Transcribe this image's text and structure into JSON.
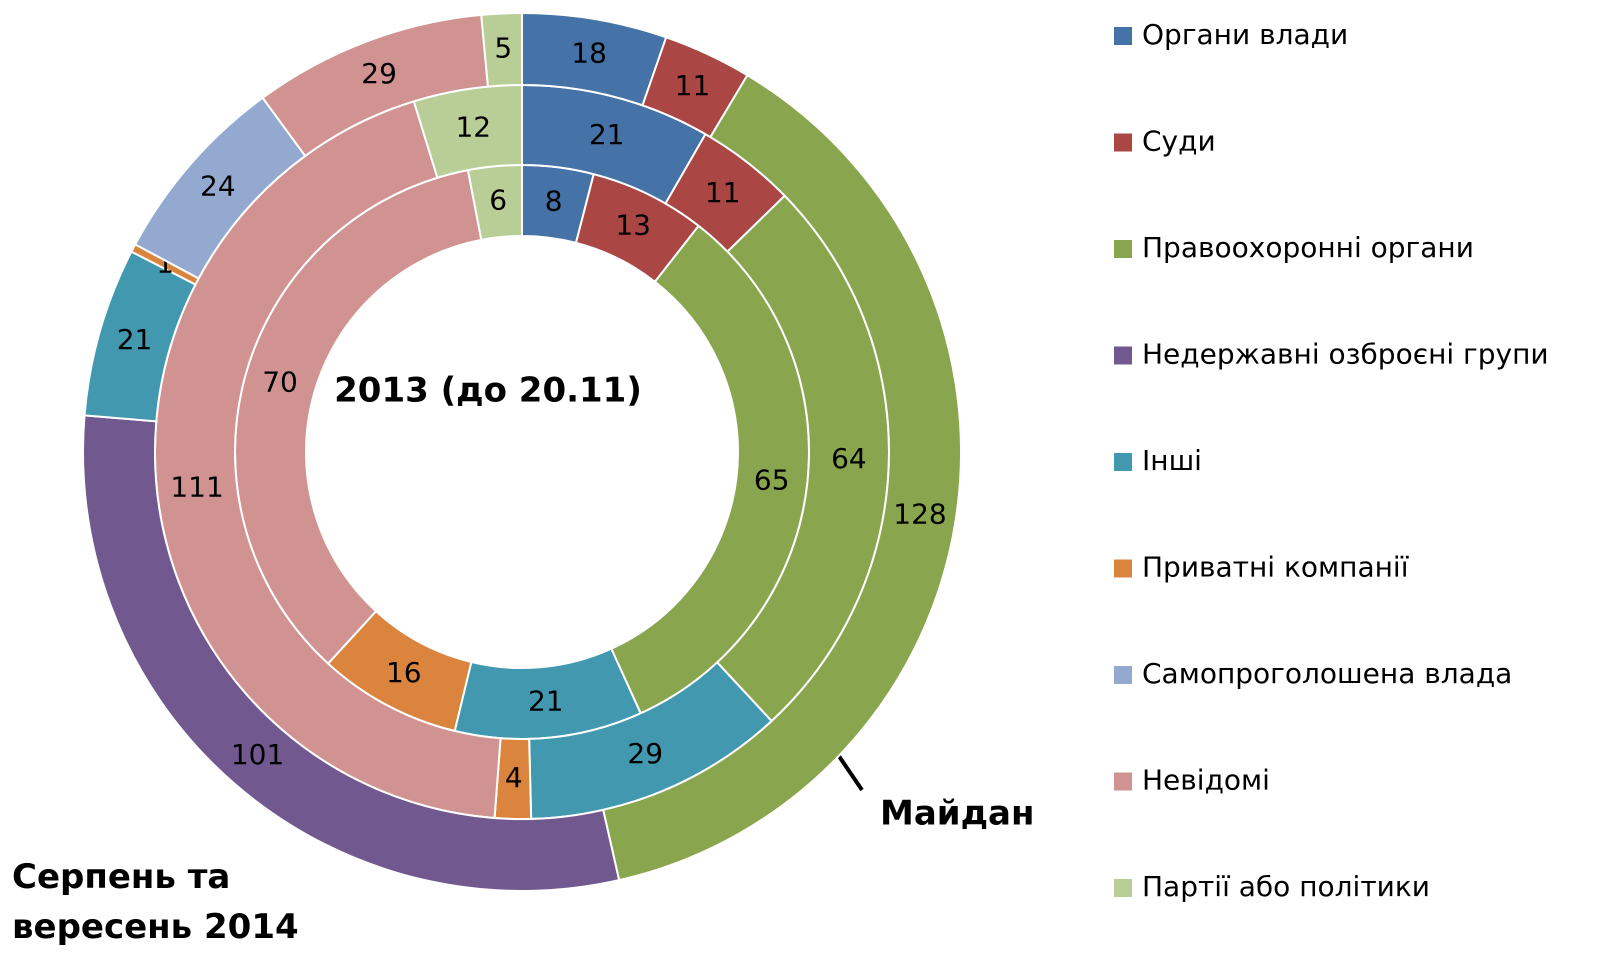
{
  "chart_data": {
    "type": "donut",
    "categories": [
      "Органи влади",
      "Суди",
      "Правоохоронні органи",
      "Недержавні озброєні групи",
      "Інші",
      "Приватні компанії",
      "Самопроголошена влада",
      "Невідомі",
      "Партії або політики"
    ],
    "colors": [
      "#4572a7",
      "#aa4643",
      "#89a54e",
      "#71588f",
      "#4198af",
      "#db843d",
      "#93a9cf",
      "#d19392",
      "#b9cd96"
    ],
    "series": [
      {
        "name": "2013 (до 20.11)",
        "values": [
          8,
          13,
          65,
          null,
          21,
          16,
          null,
          70,
          6
        ]
      },
      {
        "name": "Майдан",
        "values": [
          21,
          11,
          64,
          null,
          29,
          4,
          null,
          111,
          12
        ]
      },
      {
        "name": "Серпень та вересень 2014",
        "values": [
          18,
          11,
          128,
          101,
          21,
          1,
          24,
          29,
          5
        ]
      }
    ],
    "legend": "right"
  }
}
